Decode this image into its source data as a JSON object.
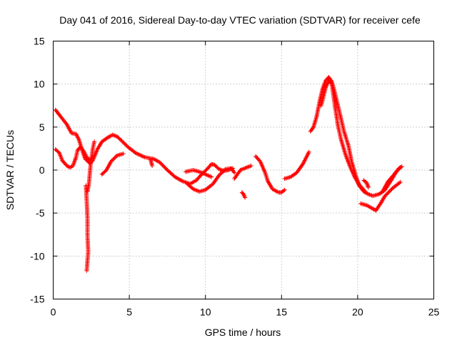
{
  "chart_data": {
    "type": "scatter",
    "title": "Day 041 of 2016, Sidereal Day-to-day VTEC variation (SDTVAR) for receiver cefe",
    "xlabel": "GPS time / hours",
    "ylabel": "SDTVAR / TECUs",
    "xlim": [
      0,
      25
    ],
    "ylim": [
      -15,
      15
    ],
    "xticks": [
      "0",
      "5",
      "10",
      "15",
      "20",
      "25"
    ],
    "yticks": [
      "15",
      "10",
      "5",
      "0",
      "-5",
      "-10",
      "-15"
    ],
    "grid": true,
    "marker": "+",
    "series_color": "#ff0000",
    "series": [
      {
        "name": "SDTVAR",
        "paths": [
          [
            [
              0.15,
              7.0
            ],
            [
              0.5,
              6.2
            ],
            [
              0.9,
              5.3
            ],
            [
              1.2,
              4.3
            ],
            [
              1.5,
              4.2
            ],
            [
              1.7,
              3.5
            ],
            [
              1.9,
              2.3
            ],
            [
              2.1,
              1.3
            ],
            [
              2.4,
              0.8
            ],
            [
              2.6,
              1.1
            ],
            [
              2.9,
              2.4
            ],
            [
              3.2,
              3.3
            ],
            [
              3.6,
              3.8
            ],
            [
              3.9,
              4.1
            ],
            [
              4.2,
              3.9
            ],
            [
              4.5,
              3.4
            ],
            [
              4.9,
              2.7
            ],
            [
              5.4,
              2.0
            ],
            [
              6.0,
              1.5
            ],
            [
              6.6,
              1.3
            ],
            [
              7.0,
              0.9
            ],
            [
              7.5,
              0.0
            ],
            [
              8.0,
              -0.8
            ],
            [
              8.5,
              -1.3
            ],
            [
              9.0,
              -1.6
            ],
            [
              9.4,
              -1.2
            ],
            [
              9.8,
              -0.4
            ],
            [
              10.1,
              0.1
            ],
            [
              10.4,
              0.7
            ],
            [
              10.6,
              0.6
            ],
            [
              10.9,
              0.1
            ],
            [
              11.2,
              -0.1
            ],
            [
              11.5,
              0.0
            ],
            [
              11.8,
              0.2
            ]
          ],
          [
            [
              0.15,
              2.4
            ],
            [
              0.4,
              2.0
            ],
            [
              0.6,
              1.1
            ],
            [
              0.9,
              0.5
            ],
            [
              1.1,
              0.3
            ],
            [
              1.3,
              0.5
            ],
            [
              1.5,
              1.5
            ],
            [
              1.6,
              2.3
            ],
            [
              1.8,
              2.7
            ],
            [
              2.0,
              2.2
            ],
            [
              2.2,
              1.5
            ],
            [
              2.4,
              1.2
            ],
            [
              2.6,
              1.5
            ]
          ],
          [
            [
              2.15,
              -1.8
            ],
            [
              2.2,
              -3.5
            ],
            [
              2.25,
              -5.5
            ],
            [
              2.25,
              -7.5
            ],
            [
              2.3,
              -9.5
            ],
            [
              2.2,
              -11.7
            ]
          ],
          [
            [
              2.25,
              -2.5
            ],
            [
              2.35,
              -1.5
            ],
            [
              2.45,
              0.5
            ],
            [
              2.6,
              2.5
            ],
            [
              2.7,
              3.3
            ]
          ],
          [
            [
              3.2,
              -0.5
            ],
            [
              3.5,
              0.0
            ],
            [
              3.8,
              1.0
            ],
            [
              4.2,
              1.7
            ],
            [
              4.6,
              1.9
            ]
          ],
          [
            [
              6.4,
              1.2
            ],
            [
              6.5,
              0.5
            ]
          ],
          [
            [
              8.7,
              -0.2
            ],
            [
              9.2,
              0.0
            ],
            [
              9.6,
              -0.2
            ],
            [
              10.0,
              -0.5
            ],
            [
              10.4,
              -0.8
            ]
          ],
          [
            [
              8.8,
              -1.6
            ],
            [
              9.2,
              -2.2
            ],
            [
              9.6,
              -2.5
            ],
            [
              10.0,
              -2.3
            ],
            [
              10.5,
              -1.6
            ],
            [
              10.9,
              -0.6
            ],
            [
              11.3,
              0.1
            ],
            [
              11.7,
              0.2
            ],
            [
              11.9,
              -0.3
            ]
          ],
          [
            [
              11.9,
              -1.0
            ],
            [
              12.1,
              -0.5
            ],
            [
              12.3,
              0.0
            ]
          ],
          [
            [
              12.4,
              -2.6
            ],
            [
              12.5,
              -2.8
            ],
            [
              12.6,
              -3.2
            ]
          ],
          [
            [
              12.3,
              0.0
            ],
            [
              12.7,
              0.3
            ],
            [
              13.0,
              0.5
            ]
          ],
          [
            [
              13.3,
              1.6
            ],
            [
              13.6,
              1.0
            ],
            [
              13.9,
              -0.2
            ],
            [
              14.1,
              -1.3
            ],
            [
              14.4,
              -2.2
            ],
            [
              14.8,
              -2.6
            ],
            [
              15.0,
              -2.6
            ],
            [
              15.2,
              -2.3
            ]
          ],
          [
            [
              15.2,
              -1.0
            ],
            [
              15.6,
              -0.8
            ],
            [
              16.0,
              -0.3
            ],
            [
              16.4,
              0.7
            ],
            [
              16.8,
              2.1
            ]
          ],
          [
            [
              16.9,
              4.5
            ],
            [
              17.1,
              5.0
            ],
            [
              17.3,
              6.2
            ],
            [
              17.5,
              8.0
            ],
            [
              17.7,
              9.5
            ],
            [
              17.9,
              10.4
            ],
            [
              18.1,
              10.8
            ],
            [
              18.3,
              10.3
            ],
            [
              18.5,
              9.0
            ],
            [
              18.8,
              6.8
            ],
            [
              19.1,
              4.5
            ],
            [
              19.4,
              2.8
            ],
            [
              19.6,
              1.0
            ],
            [
              19.9,
              -0.8
            ],
            [
              20.1,
              -1.8
            ],
            [
              20.4,
              -2.5
            ],
            [
              20.7,
              -2.8
            ],
            [
              21.0,
              -3.0
            ],
            [
              21.4,
              -2.8
            ],
            [
              21.8,
              -2.3
            ],
            [
              22.2,
              -1.2
            ],
            [
              22.5,
              -0.3
            ],
            [
              22.8,
              0.3
            ]
          ],
          [
            [
              17.6,
              7.5
            ],
            [
              17.9,
              9.6
            ],
            [
              18.1,
              10.4
            ],
            [
              18.3,
              10.0
            ],
            [
              18.5,
              7.5
            ],
            [
              18.7,
              5.2
            ],
            [
              18.9,
              3.6
            ],
            [
              19.2,
              1.8
            ],
            [
              19.5,
              0.4
            ],
            [
              19.8,
              -0.8
            ],
            [
              20.1,
              -1.7
            ],
            [
              20.5,
              -2.5
            ]
          ],
          [
            [
              20.2,
              -3.9
            ],
            [
              20.6,
              -4.1
            ],
            [
              21.0,
              -4.5
            ],
            [
              21.2,
              -4.7
            ],
            [
              21.5,
              -3.9
            ],
            [
              21.8,
              -3.0
            ],
            [
              22.3,
              -2.1
            ],
            [
              22.8,
              -1.4
            ]
          ],
          [
            [
              20.4,
              -1.2
            ],
            [
              20.6,
              -1.5
            ],
            [
              20.7,
              -2.0
            ]
          ],
          [
            [
              21.6,
              -2.6
            ],
            [
              22.0,
              -1.3
            ],
            [
              22.4,
              -0.5
            ],
            [
              22.7,
              0.2
            ],
            [
              22.9,
              0.4
            ]
          ]
        ]
      }
    ]
  }
}
